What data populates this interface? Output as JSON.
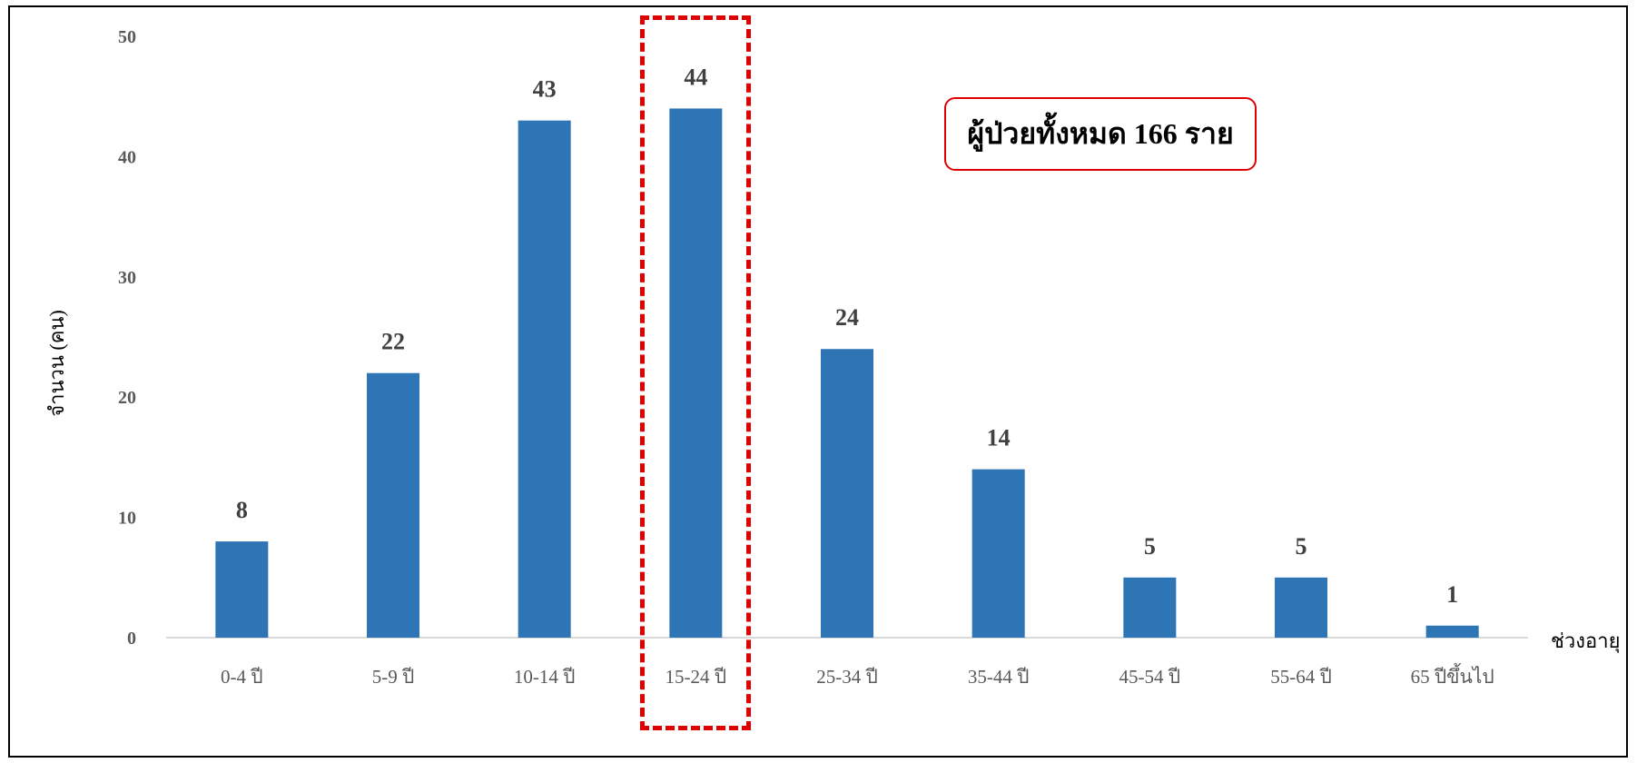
{
  "chart_data": {
    "type": "bar",
    "categories": [
      "0-4 ปี",
      "5-9 ปี",
      "10-14 ปี",
      "15-24 ปี",
      "25-34 ปี",
      "35-44 ปี",
      "45-54 ปี",
      "55-64 ปี",
      "65 ปีขึ้นไป"
    ],
    "values": [
      8,
      22,
      43,
      44,
      24,
      14,
      5,
      5,
      1
    ],
    "data_labels": [
      "8",
      "22",
      "43",
      "44",
      "24",
      "14",
      "5",
      "5",
      "1"
    ],
    "xlabel": "ช่วงอายุ",
    "ylabel": "จำนวน (คน)",
    "ylim": [
      0,
      50
    ],
    "yticks": [
      0,
      10,
      20,
      30,
      40,
      50
    ],
    "ytick_labels": [
      "0",
      "10",
      "20",
      "30",
      "40",
      "50"
    ],
    "grid": false,
    "bar_color": "#2E75B6",
    "highlight_category": "15-24 ปี",
    "highlight_color": "#E00000"
  },
  "annotation": {
    "total_text": "ผู้ป่วยทั้งหมด 166 ราย"
  }
}
